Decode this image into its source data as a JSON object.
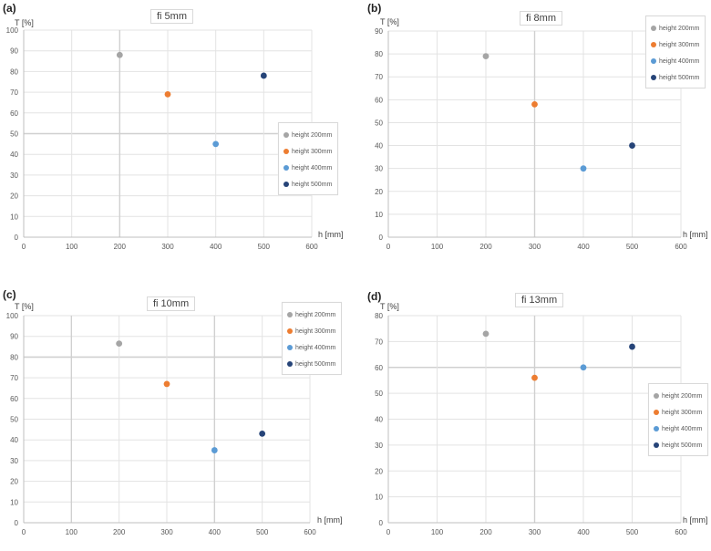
{
  "colors": {
    "series": [
      "#a5a5a5",
      "#ed7d31",
      "#5b9bd5",
      "#264478"
    ],
    "grid": "#e3e3e3",
    "grid_strong": "#d0d0d0",
    "axis": "#bfbfbf"
  },
  "chart_data": [
    {
      "type": "scatter",
      "panel": "(a)",
      "title": "fi 5mm",
      "xlabel": "h [mm]",
      "ylabel": "T [%]",
      "xlim": [
        0,
        600
      ],
      "ylim": [
        0,
        100
      ],
      "xticks": [
        0,
        100,
        200,
        300,
        400,
        500,
        600
      ],
      "yticks": [
        0,
        10,
        20,
        30,
        40,
        50,
        60,
        70,
        80,
        90,
        100
      ],
      "grid": true,
      "legend_position": "right-middle",
      "series": [
        {
          "name": "height 200mm",
          "x": [
            200
          ],
          "y": [
            88
          ]
        },
        {
          "name": "height 300mm",
          "x": [
            300
          ],
          "y": [
            69
          ]
        },
        {
          "name": "height 400mm",
          "x": [
            400
          ],
          "y": [
            45
          ]
        },
        {
          "name": "height 500mm",
          "x": [
            500
          ],
          "y": [
            78
          ]
        }
      ]
    },
    {
      "type": "scatter",
      "panel": "(b)",
      "title": "fi 8mm",
      "xlabel": "h [mm]",
      "ylabel": "T [%]",
      "xlim": [
        0,
        600
      ],
      "ylim": [
        0,
        90
      ],
      "xticks": [
        0,
        100,
        200,
        300,
        400,
        500,
        600
      ],
      "yticks": [
        0,
        10,
        20,
        30,
        40,
        50,
        60,
        70,
        80,
        90
      ],
      "grid": true,
      "legend_position": "top-right",
      "series": [
        {
          "name": "height 200mm",
          "x": [
            200
          ],
          "y": [
            79
          ]
        },
        {
          "name": "height 300mm",
          "x": [
            300
          ],
          "y": [
            58
          ]
        },
        {
          "name": "height 400mm",
          "x": [
            400
          ],
          "y": [
            30
          ]
        },
        {
          "name": "height 500mm",
          "x": [
            500
          ],
          "y": [
            40
          ]
        }
      ]
    },
    {
      "type": "scatter",
      "panel": "(c)",
      "title": "fi 10mm",
      "xlabel": "h [mm]",
      "ylabel": "T [%]",
      "xlim": [
        0,
        600
      ],
      "ylim": [
        0,
        100
      ],
      "xticks": [
        0,
        100,
        200,
        300,
        400,
        500,
        600
      ],
      "yticks": [
        0,
        10,
        20,
        30,
        40,
        50,
        60,
        70,
        80,
        90,
        100
      ],
      "grid": true,
      "legend_position": "top-right",
      "series": [
        {
          "name": "height 200mm",
          "x": [
            200
          ],
          "y": [
            86.5
          ]
        },
        {
          "name": "height 300mm",
          "x": [
            300
          ],
          "y": [
            67
          ]
        },
        {
          "name": "height 400mm",
          "x": [
            400
          ],
          "y": [
            35
          ]
        },
        {
          "name": "height 500mm",
          "x": [
            500
          ],
          "y": [
            43
          ]
        }
      ]
    },
    {
      "type": "scatter",
      "panel": "(d)",
      "title": "fi 13mm",
      "xlabel": "h [mm]",
      "ylabel": "T [%]",
      "xlim": [
        0,
        600
      ],
      "ylim": [
        0,
        80
      ],
      "xticks": [
        0,
        100,
        200,
        300,
        400,
        500,
        600
      ],
      "yticks": [
        0,
        10,
        20,
        30,
        40,
        50,
        60,
        70,
        80
      ],
      "grid": true,
      "legend_position": "right-middle",
      "series": [
        {
          "name": "height 200mm",
          "x": [
            200
          ],
          "y": [
            73
          ]
        },
        {
          "name": "height 300mm",
          "x": [
            300
          ],
          "y": [
            56
          ]
        },
        {
          "name": "height 400mm",
          "x": [
            400
          ],
          "y": [
            60
          ]
        },
        {
          "name": "height 500mm",
          "x": [
            500
          ],
          "y": [
            68
          ]
        }
      ]
    }
  ]
}
